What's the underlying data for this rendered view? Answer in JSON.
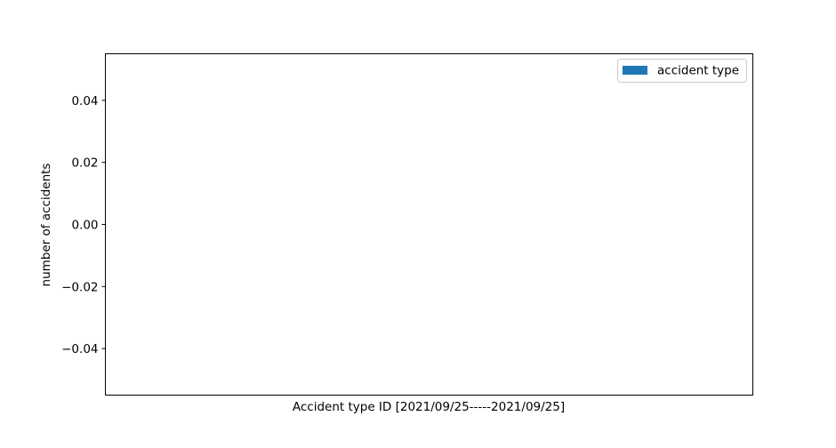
{
  "chart_data": {
    "type": "bar",
    "title": "",
    "xlabel": "Accident type ID [2021/09/25-----2021/09/25]",
    "ylabel": "number of accidents",
    "categories": [],
    "series": [
      {
        "name": "accident type",
        "color": "#1f77b4",
        "values": []
      }
    ],
    "ylim": [
      -0.055,
      0.055
    ],
    "yticks": [
      -0.04,
      -0.02,
      0.0,
      0.02,
      0.04
    ],
    "ytick_labels": [
      "−0.04",
      "−0.02",
      "0.00",
      "0.02",
      "0.04"
    ],
    "grid": false,
    "legend_position": "upper right"
  }
}
